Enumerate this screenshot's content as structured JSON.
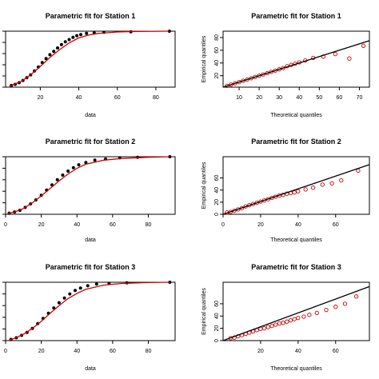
{
  "chart_data": [
    {
      "type": "line",
      "panel": "cdf",
      "title": "Parametric fit for Station 1",
      "xlabel": "data",
      "ylabel": "",
      "xlim": [
        2,
        90
      ],
      "ylim": [
        0,
        1
      ],
      "xticks": [
        "20",
        "40",
        "60",
        "80"
      ],
      "xtick_values": [
        20,
        40,
        60,
        80
      ],
      "series": [
        {
          "kind": "points",
          "color": "#000000",
          "x": [
            5,
            7,
            9,
            11,
            13,
            15,
            17,
            19,
            21,
            23,
            25,
            27,
            29,
            31,
            33,
            35,
            37,
            39,
            41,
            44,
            48,
            53,
            67,
            87
          ],
          "y": [
            0.03,
            0.05,
            0.08,
            0.12,
            0.17,
            0.22,
            0.29,
            0.36,
            0.44,
            0.51,
            0.58,
            0.64,
            0.7,
            0.76,
            0.81,
            0.85,
            0.89,
            0.92,
            0.94,
            0.96,
            0.97,
            0.98,
            0.99,
            1.0
          ]
        },
        {
          "kind": "line",
          "color": "#cc0000",
          "x": [
            4,
            10,
            15,
            20,
            25,
            30,
            35,
            40,
            45,
            50,
            60,
            70,
            87
          ],
          "y": [
            0.02,
            0.1,
            0.22,
            0.37,
            0.53,
            0.67,
            0.79,
            0.88,
            0.93,
            0.96,
            0.985,
            0.995,
            1.0
          ]
        }
      ]
    },
    {
      "type": "scatter",
      "panel": "qq",
      "title": "Parametric fit for Station 1",
      "xlabel": "Theoretical quantiles",
      "ylabel": "Empirical quantiles",
      "xlim": [
        2,
        75
      ],
      "ylim": [
        2,
        90
      ],
      "xticks": [
        "10",
        "20",
        "30",
        "40",
        "50",
        "60",
        "70"
      ],
      "xtick_values": [
        10,
        20,
        30,
        40,
        50,
        60,
        70
      ],
      "yticks": [
        "20",
        "40",
        "60",
        "80"
      ],
      "ytick_values": [
        20,
        40,
        60,
        80
      ],
      "series": [
        {
          "kind": "points",
          "color": "#cc0000",
          "x": [
            4,
            6,
            8,
            10,
            12,
            14,
            16,
            18,
            20,
            22,
            24,
            26,
            28,
            30,
            32,
            34,
            36,
            38,
            40,
            43,
            47,
            52,
            58,
            65,
            72
          ],
          "y": [
            4,
            6,
            8,
            10,
            12,
            14,
            16,
            18,
            20,
            22,
            24,
            26,
            28,
            30,
            32,
            35,
            37,
            39,
            41,
            44,
            48,
            50,
            54,
            47,
            67
          ]
        },
        {
          "kind": "line",
          "color": "#000000",
          "x": [
            2,
            75
          ],
          "y": [
            2,
            75
          ]
        }
      ]
    },
    {
      "type": "line",
      "panel": "cdf",
      "title": "Parametric fit for Station 2",
      "xlabel": "data",
      "ylabel": "",
      "xlim": [
        0,
        95
      ],
      "ylim": [
        0,
        1
      ],
      "xticks": [
        "0",
        "20",
        "40",
        "60",
        "80"
      ],
      "xtick_values": [
        0,
        20,
        40,
        60,
        80
      ],
      "series": [
        {
          "kind": "points",
          "color": "#000000",
          "x": [
            2,
            5,
            8,
            11,
            14,
            17,
            20,
            23,
            26,
            29,
            32,
            35,
            38,
            41,
            45,
            50,
            56,
            64,
            74,
            92
          ],
          "y": [
            0.02,
            0.04,
            0.07,
            0.12,
            0.18,
            0.25,
            0.33,
            0.42,
            0.51,
            0.6,
            0.68,
            0.75,
            0.81,
            0.86,
            0.9,
            0.94,
            0.96,
            0.98,
            0.99,
            1.0
          ]
        },
        {
          "kind": "line",
          "color": "#cc0000",
          "x": [
            1,
            5,
            10,
            15,
            20,
            25,
            30,
            35,
            40,
            45,
            55,
            65,
            80,
            92
          ],
          "y": [
            0.01,
            0.04,
            0.1,
            0.2,
            0.32,
            0.45,
            0.58,
            0.7,
            0.8,
            0.87,
            0.94,
            0.97,
            0.99,
            1.0
          ]
        }
      ]
    },
    {
      "type": "scatter",
      "panel": "qq",
      "title": "Parametric fit for Station 2",
      "xlabel": "Theoretical quantiles",
      "ylabel": "Empirical quantiles",
      "xlim": [
        0,
        78
      ],
      "ylim": [
        0,
        95
      ],
      "xticks": [
        "0",
        "20",
        "40",
        "60"
      ],
      "xtick_values": [
        0,
        20,
        40,
        60
      ],
      "yticks": [
        "0",
        "20",
        "40",
        "60"
      ],
      "ytick_values": [
        0,
        20,
        40,
        60
      ],
      "series": [
        {
          "kind": "points",
          "color": "#cc0000",
          "x": [
            2,
            4,
            6,
            8,
            10,
            12,
            14,
            16,
            18,
            20,
            22,
            24,
            26,
            28,
            30,
            32,
            34,
            36,
            38,
            40,
            44,
            48,
            53,
            58,
            63,
            72
          ],
          "y": [
            3,
            4,
            6,
            8,
            10,
            13,
            15,
            17,
            19,
            21,
            23,
            25,
            27,
            29,
            31,
            32,
            34,
            35,
            36,
            38,
            41,
            44,
            49,
            51,
            56,
            72
          ]
        },
        {
          "kind": "line",
          "color": "#000000",
          "x": [
            0,
            78
          ],
          "y": [
            0,
            82
          ]
        }
      ]
    },
    {
      "type": "line",
      "panel": "cdf",
      "title": "Parametric fit for Station 3",
      "xlabel": "data",
      "ylabel": "",
      "xlim": [
        0,
        95
      ],
      "ylim": [
        0,
        1
      ],
      "xticks": [
        "0",
        "20",
        "40",
        "60",
        "80"
      ],
      "xtick_values": [
        0,
        20,
        40,
        60,
        80
      ],
      "series": [
        {
          "kind": "points",
          "color": "#000000",
          "x": [
            3,
            6,
            9,
            12,
            15,
            18,
            21,
            24,
            27,
            30,
            33,
            36,
            39,
            42,
            46,
            51,
            58,
            68,
            92
          ],
          "y": [
            0.02,
            0.05,
            0.09,
            0.14,
            0.21,
            0.29,
            0.38,
            0.47,
            0.56,
            0.65,
            0.73,
            0.8,
            0.86,
            0.9,
            0.94,
            0.97,
            0.98,
            0.99,
            1.0
          ]
        },
        {
          "kind": "line",
          "color": "#cc0000",
          "x": [
            2,
            5,
            10,
            15,
            20,
            25,
            30,
            35,
            40,
            45,
            55,
            65,
            80,
            92
          ],
          "y": [
            0.01,
            0.04,
            0.11,
            0.21,
            0.33,
            0.47,
            0.6,
            0.72,
            0.81,
            0.88,
            0.95,
            0.98,
            0.995,
            1.0
          ]
        }
      ]
    },
    {
      "type": "scatter",
      "panel": "qq",
      "title": "Parametric fit for Station 3",
      "xlabel": "Theoretical quantiles",
      "ylabel": "Empirical quantiles",
      "xlim": [
        0,
        78
      ],
      "ylim": [
        0,
        95
      ],
      "xticks": [
        "20",
        "40",
        "60"
      ],
      "xtick_values": [
        20,
        40,
        60
      ],
      "yticks": [
        "0",
        "20",
        "40",
        "60"
      ],
      "ytick_values": [
        0,
        20,
        40,
        60
      ],
      "series": [
        {
          "kind": "points",
          "color": "#cc0000",
          "x": [
            4,
            6,
            8,
            10,
            12,
            14,
            16,
            18,
            20,
            22,
            24,
            26,
            28,
            30,
            32,
            34,
            36,
            38,
            40,
            43,
            46,
            50,
            55,
            60,
            65,
            71
          ],
          "y": [
            4,
            5,
            7,
            9,
            11,
            13,
            15,
            17,
            19,
            20,
            22,
            24,
            26,
            28,
            29,
            31,
            33,
            35,
            37,
            39,
            42,
            45,
            50,
            55,
            60,
            72
          ]
        },
        {
          "kind": "line",
          "color": "#000000",
          "x": [
            0,
            78
          ],
          "y": [
            0,
            88
          ]
        }
      ]
    }
  ]
}
